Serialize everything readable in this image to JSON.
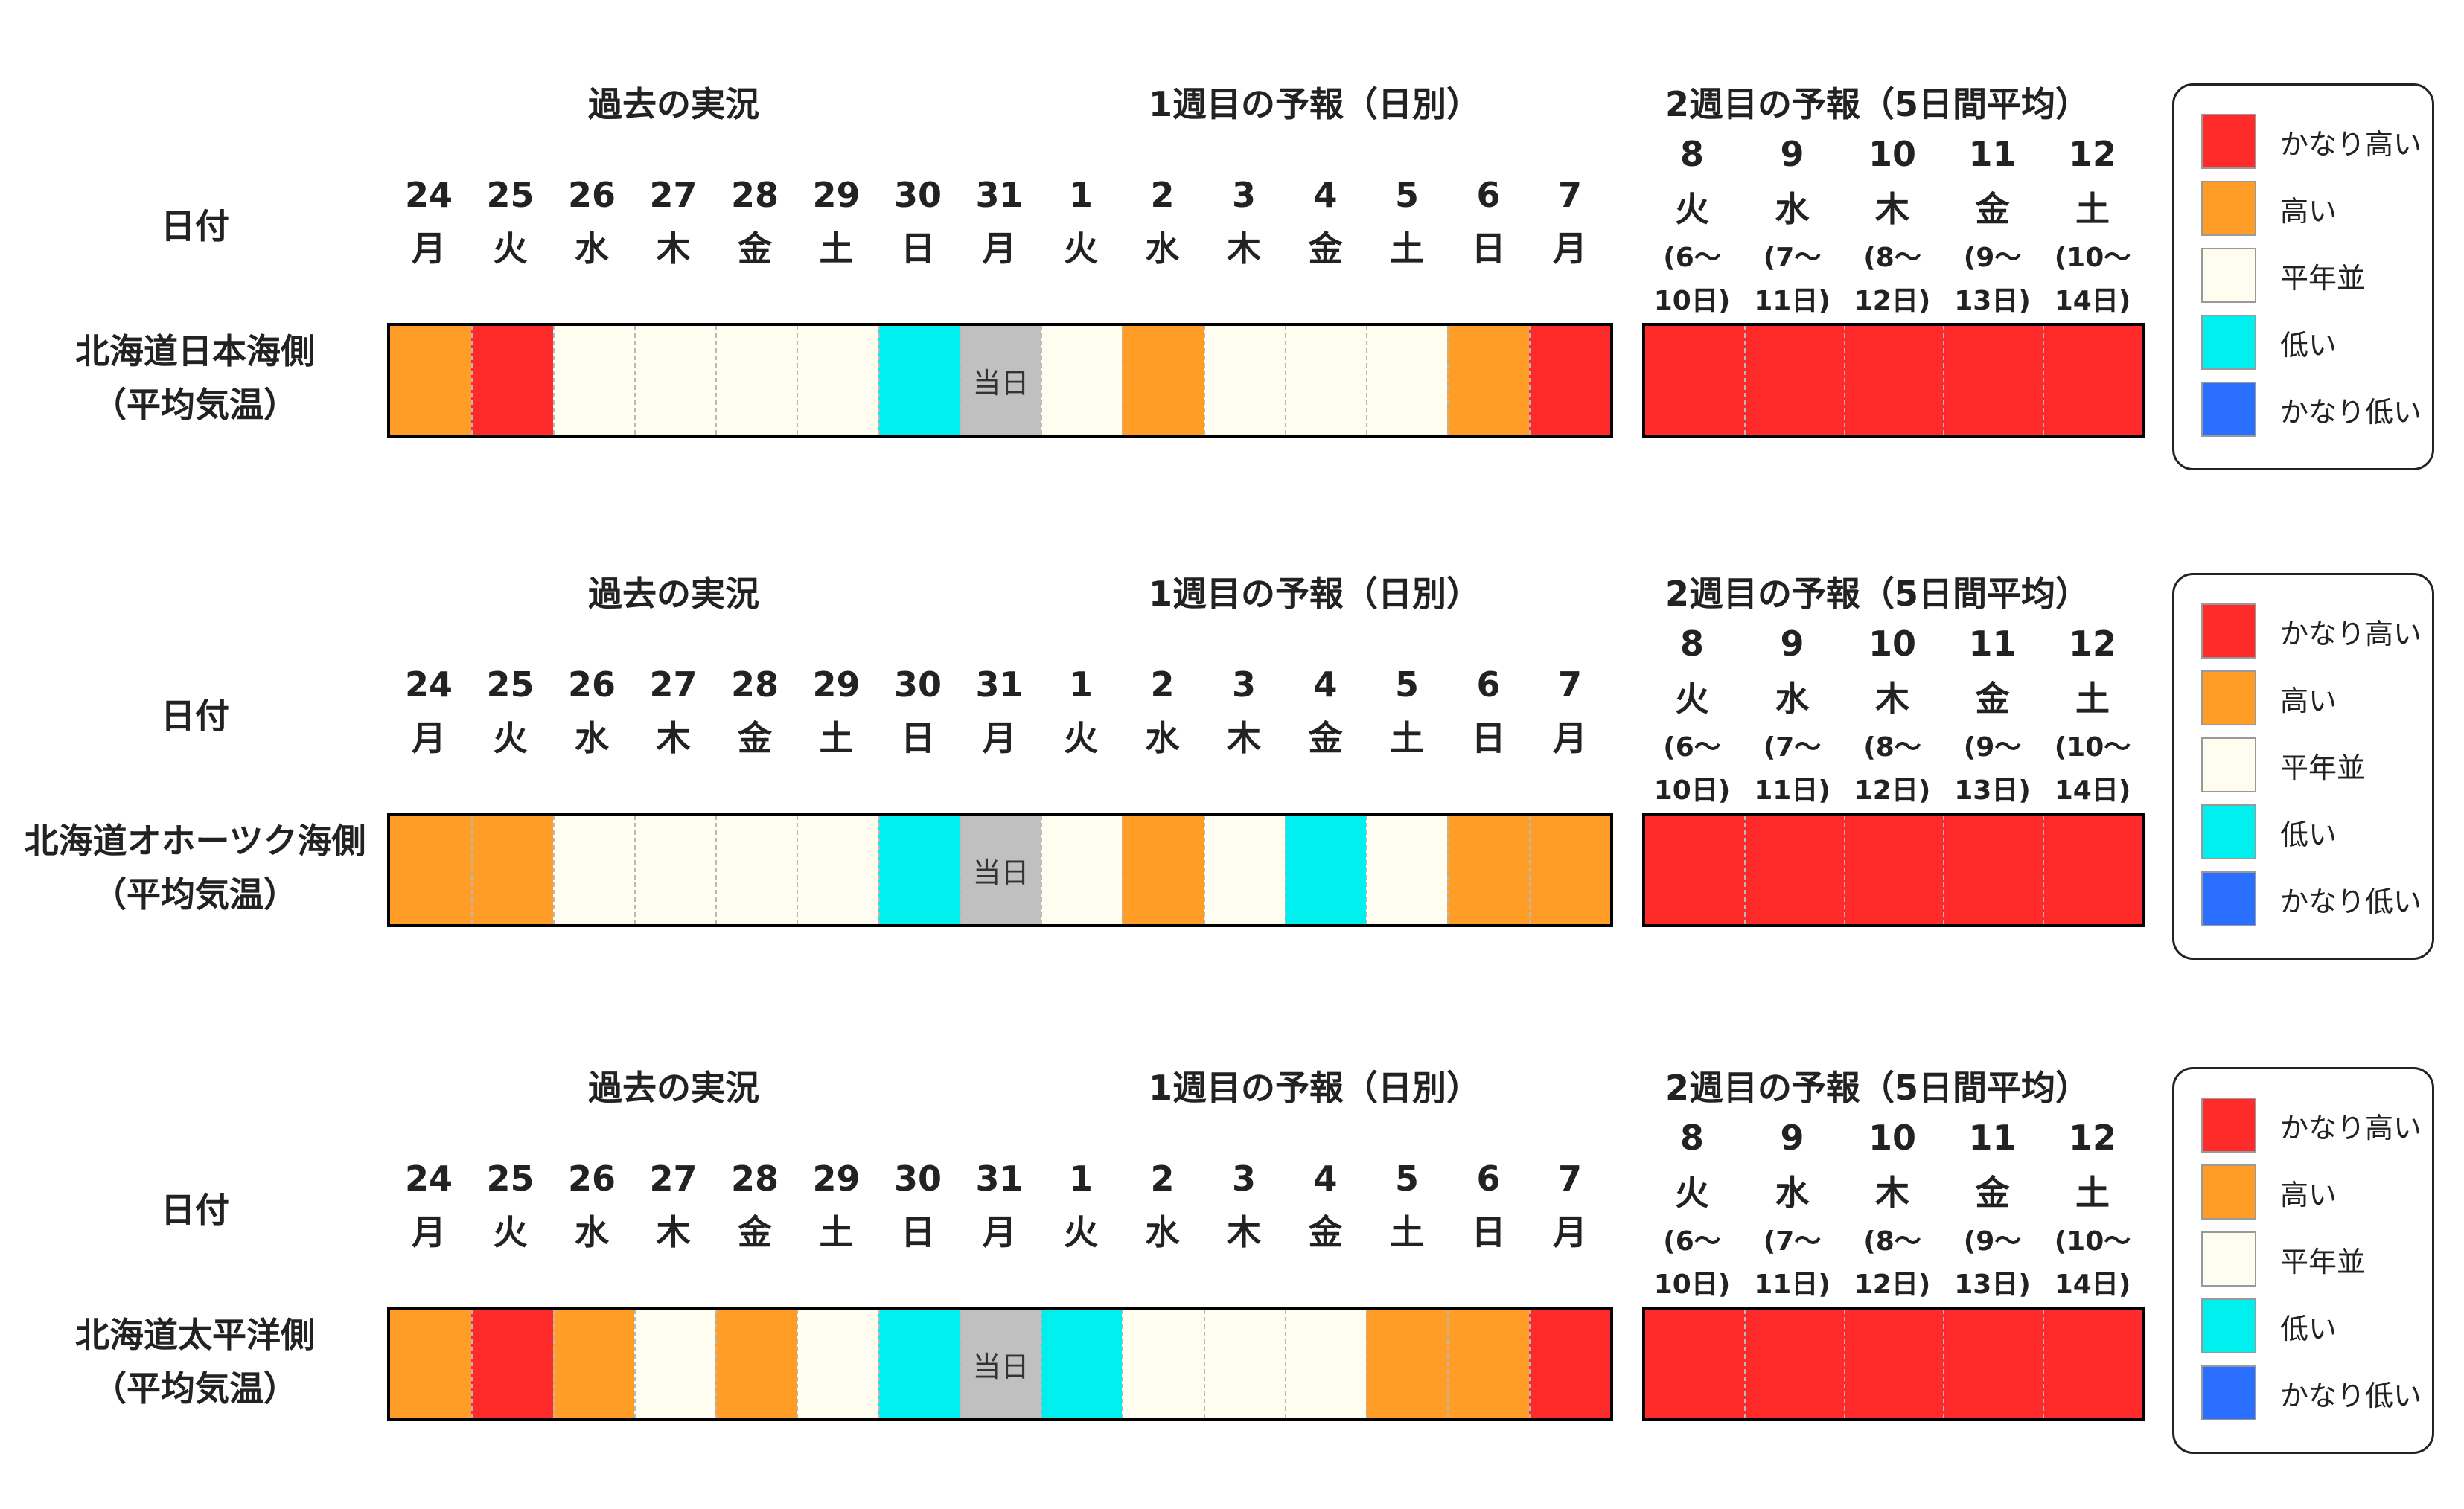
{
  "colors": {
    "very_high": "#ff2a2a",
    "high": "#ff9d26",
    "normal": "#fffdf0",
    "low": "#00f0f0",
    "very_low": "#2a6fff",
    "today": "#c0c0c0"
  },
  "headers": {
    "past": "過去の実況",
    "week1": "1週目の予報（日別）",
    "week2": "2週目の予報（5日間平均）",
    "date": "日付"
  },
  "days": [
    {
      "num": "24",
      "wd": "月"
    },
    {
      "num": "25",
      "wd": "火"
    },
    {
      "num": "26",
      "wd": "水"
    },
    {
      "num": "27",
      "wd": "木"
    },
    {
      "num": "28",
      "wd": "金"
    },
    {
      "num": "29",
      "wd": "土"
    },
    {
      "num": "30",
      "wd": "日"
    },
    {
      "num": "31",
      "wd": "月"
    },
    {
      "num": "1",
      "wd": "火"
    },
    {
      "num": "2",
      "wd": "水"
    },
    {
      "num": "3",
      "wd": "木"
    },
    {
      "num": "4",
      "wd": "金"
    },
    {
      "num": "5",
      "wd": "土"
    },
    {
      "num": "6",
      "wd": "日"
    },
    {
      "num": "7",
      "wd": "月"
    }
  ],
  "week2_days": [
    {
      "num": "8",
      "wd": "火",
      "range1": "(6～",
      "range2": "10日)"
    },
    {
      "num": "9",
      "wd": "水",
      "range1": "(7～",
      "range2": "11日)"
    },
    {
      "num": "10",
      "wd": "木",
      "range1": "(8～",
      "range2": "12日)"
    },
    {
      "num": "11",
      "wd": "金",
      "range1": "(9～",
      "range2": "13日)"
    },
    {
      "num": "12",
      "wd": "土",
      "range1": "(10～",
      "range2": "14日)"
    }
  ],
  "today_label": "当日",
  "legend": [
    {
      "key": "very_high",
      "label": "かなり高い"
    },
    {
      "key": "high",
      "label": "高い"
    },
    {
      "key": "normal",
      "label": "平年並"
    },
    {
      "key": "low",
      "label": "低い"
    },
    {
      "key": "very_low",
      "label": "かなり低い"
    }
  ],
  "regions": [
    {
      "name": "北海道日本海側",
      "sub": "（平均気温）",
      "daily": [
        "high",
        "very_high",
        "normal",
        "normal",
        "normal",
        "normal",
        "low",
        "today",
        "normal",
        "high",
        "normal",
        "normal",
        "normal",
        "high",
        "very_high"
      ],
      "week2": [
        "very_high",
        "very_high",
        "very_high",
        "very_high",
        "very_high"
      ]
    },
    {
      "name": "北海道オホーツク海側",
      "sub": "（平均気温）",
      "daily": [
        "high",
        "high",
        "normal",
        "normal",
        "normal",
        "normal",
        "low",
        "today",
        "normal",
        "high",
        "normal",
        "low",
        "normal",
        "high",
        "high"
      ],
      "week2": [
        "very_high",
        "very_high",
        "very_high",
        "very_high",
        "very_high"
      ]
    },
    {
      "name": "北海道太平洋側",
      "sub": "（平均気温）",
      "daily": [
        "high",
        "very_high",
        "high",
        "normal",
        "high",
        "normal",
        "low",
        "today",
        "low",
        "normal",
        "normal",
        "normal",
        "high",
        "high",
        "very_high"
      ],
      "week2": [
        "very_high",
        "very_high",
        "very_high",
        "very_high",
        "very_high"
      ]
    }
  ]
}
